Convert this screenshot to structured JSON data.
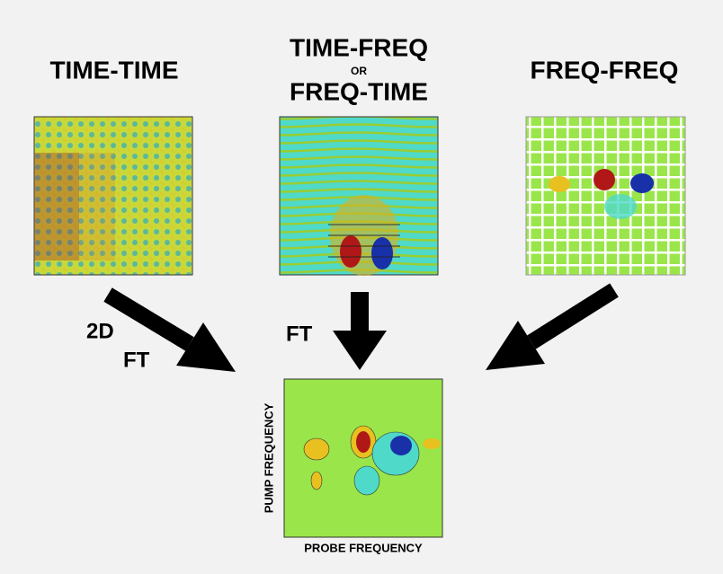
{
  "panels": [
    {
      "title": "TIME-TIME"
    },
    {
      "title_top": "TIME-FREQ",
      "connector": "OR",
      "title_bottom": "FREQ-TIME"
    },
    {
      "title": "FREQ-FREQ"
    }
  ],
  "arrows": {
    "left_label_top": "2D",
    "left_label_bottom": "FT",
    "middle_label": "FT"
  },
  "result": {
    "y_axis_label": "PUMP FREQUENCY",
    "x_axis_label": "PROBE FREQUENCY"
  }
}
